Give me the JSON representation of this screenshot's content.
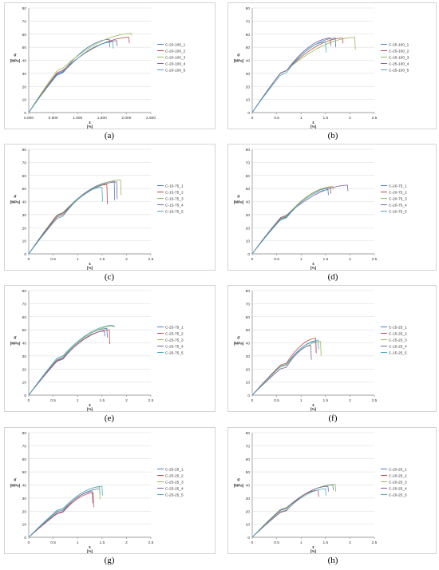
{
  "charts": [
    {
      "caption": "(a)",
      "chart_data": {
        "type": "line",
        "ylabel": [
          "σ",
          "[MPa]"
        ],
        "xlabel": [
          "ε",
          "[%]"
        ],
        "xlim": [
          0,
          2.5
        ],
        "ylim": [
          0,
          80
        ],
        "x_ticks": [
          "0.000",
          "0.500",
          "1.000",
          "1.500",
          "2.000",
          "2.500"
        ],
        "y_ticks": [
          "0",
          "10",
          "20",
          "30",
          "40",
          "50",
          "60",
          "70",
          "80"
        ],
        "grid": true,
        "legend": "right",
        "series": [
          {
            "name": "C-20-100_1",
            "peak_x": 1.65,
            "peak_y": 56,
            "drop_y": 50
          },
          {
            "name": "C-20-100_2",
            "peak_x": 2.05,
            "peak_y": 57.5,
            "drop_y": 53
          },
          {
            "name": "C-20-100_3",
            "peak_x": 2.1,
            "peak_y": 60.5,
            "drop_y": 59
          },
          {
            "name": "C-20-100_4",
            "peak_x": 1.8,
            "peak_y": 55,
            "drop_y": 51
          },
          {
            "name": "C-20-100_5",
            "peak_x": 1.72,
            "peak_y": 54,
            "drop_y": 49
          }
        ]
      }
    },
    {
      "caption": "(b)",
      "chart_data": {
        "type": "line",
        "ylabel": [
          "σ",
          "[MPa]"
        ],
        "xlabel": [
          "ε",
          "[%]"
        ],
        "xlim": [
          0,
          2.5
        ],
        "ylim": [
          0,
          80
        ],
        "x_ticks": [
          "0",
          "0.5",
          "1",
          "1.5",
          "2",
          "2.5"
        ],
        "y_ticks": [
          "0",
          "10",
          "20",
          "30",
          "40",
          "50",
          "60",
          "70",
          "80"
        ],
        "grid": true,
        "legend": "right",
        "series": [
          {
            "name": "C-25-100_1",
            "peak_x": 1.7,
            "peak_y": 57,
            "drop_y": 50
          },
          {
            "name": "C-25-100_2",
            "peak_x": 1.85,
            "peak_y": 57,
            "drop_y": 53
          },
          {
            "name": "C-25-100_3",
            "peak_x": 2.1,
            "peak_y": 57.5,
            "drop_y": 48
          },
          {
            "name": "C-25-100_4",
            "peak_x": 1.6,
            "peak_y": 57,
            "drop_y": 51
          },
          {
            "name": "C-25-100_5",
            "peak_x": 1.5,
            "peak_y": 54,
            "drop_y": 46
          }
        ]
      }
    },
    {
      "caption": "(c)",
      "chart_data": {
        "type": "line",
        "ylabel": [
          "σ",
          "[MPa]"
        ],
        "xlabel": [
          "ε",
          "[%]"
        ],
        "xlim": [
          0,
          2.5
        ],
        "ylim": [
          0,
          80
        ],
        "x_ticks": [
          "0",
          "0.5",
          "1",
          "1.5",
          "2",
          "2.5"
        ],
        "y_ticks": [
          "0",
          "10",
          "20",
          "30",
          "40",
          "50",
          "60",
          "70",
          "80"
        ],
        "grid": true,
        "legend": "right",
        "series": [
          {
            "name": "C-15-75_1",
            "peak_x": 1.75,
            "peak_y": 55.5,
            "drop_y": 41
          },
          {
            "name": "C-15-75_2",
            "peak_x": 1.6,
            "peak_y": 53,
            "drop_y": 38
          },
          {
            "name": "C-15-75_3",
            "peak_x": 1.88,
            "peak_y": 56.5,
            "drop_y": 45
          },
          {
            "name": "C-15-75_4",
            "peak_x": 1.8,
            "peak_y": 55,
            "drop_y": 42
          },
          {
            "name": "C-15-75_5",
            "peak_x": 1.5,
            "peak_y": 51,
            "drop_y": 40
          }
        ]
      }
    },
    {
      "caption": "(d)",
      "chart_data": {
        "type": "line",
        "ylabel": [
          "σ",
          "[MPa]"
        ],
        "xlabel": [
          "ε",
          "[%]"
        ],
        "xlim": [
          0,
          2.5
        ],
        "ylim": [
          0,
          80
        ],
        "x_ticks": [
          "0",
          "0.5",
          "1",
          "1.5",
          "2",
          "2.5"
        ],
        "y_ticks": [
          "0",
          "10",
          "20",
          "30",
          "40",
          "50",
          "60",
          "70",
          "80"
        ],
        "grid": true,
        "legend": "right",
        "series": [
          {
            "name": "C-20-75_1",
            "peak_x": 1.55,
            "peak_y": 50,
            "drop_y": 45
          },
          {
            "name": "C-20-75_2",
            "peak_x": 1.6,
            "peak_y": 51,
            "drop_y": 46
          },
          {
            "name": "C-20-75_3",
            "peak_x": 1.65,
            "peak_y": 51.5,
            "drop_y": 49
          },
          {
            "name": "C-20-75_4",
            "peak_x": 1.95,
            "peak_y": 52.5,
            "drop_y": 48
          },
          {
            "name": "C-20-75_5",
            "peak_x": 1.55,
            "peak_y": 49,
            "drop_y": 46
          }
        ]
      }
    },
    {
      "caption": "(e)",
      "chart_data": {
        "type": "line",
        "ylabel": [
          "σ",
          "[MPa]"
        ],
        "xlabel": [
          "ε",
          "[%]"
        ],
        "xlim": [
          0,
          2.5
        ],
        "ylim": [
          0,
          80
        ],
        "x_ticks": [
          "0",
          "0.5",
          "1",
          "1.5",
          "2",
          "2.5"
        ],
        "y_ticks": [
          "0",
          "10",
          "20",
          "30",
          "40",
          "50",
          "60",
          "70",
          "80"
        ],
        "grid": true,
        "legend": "right",
        "series": [
          {
            "name": "C-25-75_1",
            "peak_x": 1.6,
            "peak_y": 51,
            "drop_y": 44
          },
          {
            "name": "C-25-75_2",
            "peak_x": 1.65,
            "peak_y": 50,
            "drop_y": 39
          },
          {
            "name": "C-25-75_3",
            "peak_x": 1.75,
            "peak_y": 53,
            "drop_y": 52
          },
          {
            "name": "C-25-75_4",
            "peak_x": 1.55,
            "peak_y": 49,
            "drop_y": 45
          },
          {
            "name": "C-25-75_5",
            "peak_x": 1.72,
            "peak_y": 53.5,
            "drop_y": 52
          }
        ]
      }
    },
    {
      "caption": "(f)",
      "chart_data": {
        "type": "line",
        "ylabel": [
          "σ",
          "[MPa]"
        ],
        "xlabel": [
          "ε",
          "[%]"
        ],
        "xlim": [
          0,
          2.5
        ],
        "ylim": [
          0,
          80
        ],
        "x_ticks": [
          "0",
          "0.5",
          "1",
          "1.5",
          "2",
          "2.5"
        ],
        "y_ticks": [
          "0",
          "10",
          "20",
          "30",
          "40",
          "50",
          "60",
          "70",
          "80"
        ],
        "grid": true,
        "legend": "right",
        "series": [
          {
            "name": "C-15-25_1",
            "peak_x": 1.3,
            "peak_y": 41,
            "drop_y": 33
          },
          {
            "name": "C-15-25_2",
            "peak_x": 1.3,
            "peak_y": 43.5,
            "drop_y": 32
          },
          {
            "name": "C-15-25_3",
            "peak_x": 1.4,
            "peak_y": 41,
            "drop_y": 30
          },
          {
            "name": "C-15-25_4",
            "peak_x": 1.2,
            "peak_y": 38,
            "drop_y": 27
          },
          {
            "name": "C-15-25_5",
            "peak_x": 1.35,
            "peak_y": 42,
            "drop_y": 35
          }
        ]
      }
    },
    {
      "caption": "(g)",
      "chart_data": {
        "type": "line",
        "ylabel": [
          "σ",
          "[MPa]"
        ],
        "xlabel": [
          "ε",
          "[%]"
        ],
        "xlim": [
          0,
          2.5
        ],
        "ylim": [
          0,
          80
        ],
        "x_ticks": [
          "0",
          "0.5",
          "1",
          "1.5",
          "2",
          "2.5"
        ],
        "y_ticks": [
          "0",
          "10",
          "20",
          "30",
          "40",
          "50",
          "60",
          "70",
          "80"
        ],
        "grid": true,
        "legend": "right",
        "series": [
          {
            "name": "C-25-25_1",
            "peak_x": 1.45,
            "peak_y": 37,
            "drop_y": 33
          },
          {
            "name": "C-25-25_2",
            "peak_x": 1.32,
            "peak_y": 34,
            "drop_y": 23
          },
          {
            "name": "C-25-25_3",
            "peak_x": 1.45,
            "peak_y": 38.5,
            "drop_y": 29
          },
          {
            "name": "C-25-25_4",
            "peak_x": 1.3,
            "peak_y": 35,
            "drop_y": 26
          },
          {
            "name": "C-25-25_5",
            "peak_x": 1.5,
            "peak_y": 39,
            "drop_y": 32
          }
        ]
      }
    },
    {
      "caption": "(h)",
      "chart_data": {
        "type": "line",
        "ylabel": [
          "σ",
          "[MPa]"
        ],
        "xlabel": [
          "ε",
          "[%]"
        ],
        "xlim": [
          0,
          2.5
        ],
        "ylim": [
          0,
          80
        ],
        "x_ticks": [
          "0",
          "0.5",
          "1",
          "1.5",
          "2",
          "2.5"
        ],
        "y_ticks": [
          "0",
          "10",
          "20",
          "30",
          "40",
          "50",
          "60",
          "70",
          "80"
        ],
        "grid": true,
        "legend": "right",
        "series": [
          {
            "name": "C-20-25_1",
            "peak_x": 1.65,
            "peak_y": 40,
            "drop_y": 36
          },
          {
            "name": "C-20-25_2",
            "peak_x": 1.35,
            "peak_y": 36,
            "drop_y": 31
          },
          {
            "name": "C-20-25_3",
            "peak_x": 1.7,
            "peak_y": 40.5,
            "drop_y": 35
          },
          {
            "name": "C-20-25_4",
            "peak_x": 1.55,
            "peak_y": 39,
            "drop_y": 35
          },
          {
            "name": "C-20-25_5",
            "peak_x": 1.5,
            "peak_y": 37,
            "drop_y": 32
          }
        ]
      }
    }
  ],
  "colors": [
    "#4a7ebb",
    "#be4b48",
    "#98b954",
    "#7d60a0",
    "#46aac5"
  ],
  "gridColor": "#d9d9d9",
  "axisColor": "#868686"
}
